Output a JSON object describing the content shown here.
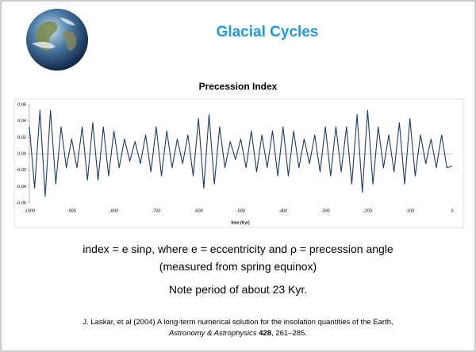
{
  "slide": {
    "title": "Glacial Cycles",
    "formula": "index = e sinρ, where e = eccentricity and ρ = precession angle",
    "formula_note": "(measured from spring equinox)",
    "note": "Note period of about 23 Kyr.",
    "citation": "J. Laskar, et al (2004) A long-term numerical solution for the insolation quantities of the Earth,",
    "journal": "Astronomy & Astrophysics",
    "volume": "428",
    "pages": ", 261–285."
  },
  "chart_data": {
    "type": "line",
    "title": "Precession Index",
    "x_label": "time (Kyr)",
    "color": "#1f3a68",
    "xlim": [
      -1000,
      0
    ],
    "xticks": [
      -1000,
      -900,
      -800,
      -700,
      -600,
      -500,
      -400,
      -300,
      -200,
      -100,
      0
    ],
    "ylim": [
      -0.06,
      0.06
    ],
    "yticks": [
      0.06,
      0.04,
      0.02,
      {
        "value": 0,
        "label": "0.00"
      },
      -0.02,
      -0.04,
      -0.06
    ],
    "x": [
      -1000,
      -987.5,
      -975,
      -962.5,
      -950,
      -937.5,
      -925,
      -912.5,
      -900,
      -887.5,
      -875,
      -862.5,
      -850,
      -837.5,
      -825,
      -812.5,
      -800,
      -787.5,
      -775,
      -762.5,
      -750,
      -737.5,
      -725,
      -712.5,
      -700,
      -687.5,
      -675,
      -662.5,
      -650,
      -637.5,
      -625,
      -612.5,
      -600,
      -587.5,
      -575,
      -562.5,
      -550,
      -537.5,
      -525,
      -512.5,
      -500,
      -487.5,
      -475,
      -462.5,
      -450,
      -437.5,
      -425,
      -412.5,
      -400,
      -387.5,
      -375,
      -362.5,
      -350,
      -337.5,
      -325,
      -312.5,
      -300,
      -287.5,
      -275,
      -262.5,
      -250,
      -237.5,
      -225,
      -212.5,
      -200,
      -187.5,
      -175,
      -162.5,
      -150,
      -137.5,
      -125,
      -112.5,
      -100,
      -87.5,
      -75,
      -62.5,
      -50,
      -37.5,
      -25,
      -12.5,
      0
    ],
    "values": [
      0.033,
      -0.042,
      0.053,
      -0.052,
      0.053,
      -0.037,
      0.033,
      -0.017,
      0.018,
      -0.017,
      0.033,
      -0.032,
      0.038,
      -0.032,
      0.033,
      -0.027,
      0.028,
      -0.017,
      0.018,
      -0.009,
      0.015,
      -0.012,
      0.023,
      -0.022,
      0.033,
      -0.027,
      0.028,
      -0.017,
      0.018,
      -0.012,
      0.023,
      -0.027,
      0.043,
      -0.042,
      0.048,
      -0.037,
      0.033,
      -0.017,
      0.015,
      -0.007,
      0.018,
      -0.017,
      0.028,
      -0.022,
      0.023,
      -0.017,
      0.028,
      -0.027,
      0.033,
      -0.027,
      0.028,
      -0.017,
      0.018,
      -0.012,
      0.023,
      -0.022,
      0.033,
      -0.027,
      0.033,
      -0.022,
      0.033,
      -0.037,
      0.048,
      -0.047,
      0.053,
      -0.037,
      0.033,
      -0.017,
      0.023,
      -0.022,
      0.038,
      -0.037,
      0.043,
      -0.027,
      0.023,
      -0.012,
      0.018,
      -0.017,
      0.023,
      -0.017,
      -0.015
    ]
  }
}
